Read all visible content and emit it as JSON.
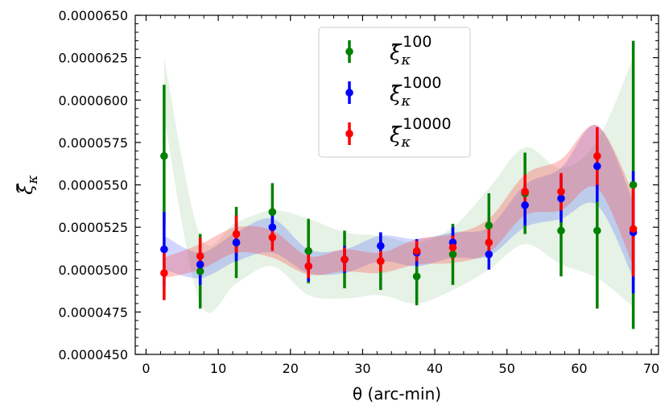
{
  "chart_data": {
    "type": "scatter",
    "title": "",
    "xlabel": "θ (arc-min)",
    "ylabel": "ξ̄_κ",
    "xlim": [
      -1.5,
      71
    ],
    "ylim": [
      4.5e-05,
      6.5e-05
    ],
    "x_ticks": [
      0,
      10,
      20,
      30,
      40,
      50,
      60,
      70
    ],
    "x_tick_labels": [
      "0",
      "10",
      "20",
      "30",
      "40",
      "50",
      "60",
      "70"
    ],
    "y_ticks": [
      4.5e-05,
      4.75e-05,
      5e-05,
      5.25e-05,
      5.5e-05,
      5.75e-05,
      6e-05,
      6.25e-05,
      6.5e-05
    ],
    "y_tick_labels": [
      "0.0000450",
      "0.0000475",
      "0.0000500",
      "0.0000525",
      "0.0000550",
      "0.0000575",
      "0.0000600",
      "0.0000625",
      "0.0000650"
    ],
    "legend": {
      "placement": "top-center",
      "entries": [
        {
          "base": "ξ̄",
          "sub": "κ",
          "sup": "100"
        },
        {
          "base": "ξ̄",
          "sub": "κ",
          "sup": "1000"
        },
        {
          "base": "ξ̄",
          "sub": "κ",
          "sup": "10000"
        }
      ]
    },
    "series": [
      {
        "name": "ξ̄_κ^100",
        "color": "#008000",
        "band_color": "#008000",
        "band_opacity": 0.1,
        "offset": 0,
        "x": [
          2.5,
          7.5,
          12.5,
          17.5,
          22.5,
          27.5,
          32.5,
          37.5,
          42.5,
          47.5,
          52.5,
          57.5,
          62.5,
          67.5
        ],
        "y": [
          5.67e-05,
          4.99e-05,
          5.16e-05,
          5.34e-05,
          5.11e-05,
          5.06e-05,
          5.05e-05,
          4.96e-05,
          5.09e-05,
          5.26e-05,
          5.45e-05,
          5.23e-05,
          5.23e-05,
          5.5e-05
        ],
        "yerr": [
          4.2e-06,
          2.2e-06,
          2.1e-06,
          1.7e-06,
          1.9e-06,
          1.7e-06,
          1.7e-06,
          1.7e-06,
          1.8e-06,
          1.9e-06,
          2.4e-06,
          2.7e-06,
          4.6e-06,
          8.5e-06
        ],
        "band_lower": [
          5.9e-05,
          4.8e-05,
          4.92e-05,
          5.02e-05,
          4.85e-05,
          4.83e-05,
          4.85e-05,
          4.8e-05,
          4.88e-05,
          5e-05,
          5.15e-05,
          5.03e-05,
          4.95e-05,
          4.78e-05
        ],
        "band_upper": [
          6.25e-05,
          5.2e-05,
          5.28e-05,
          5.35e-05,
          5.3e-05,
          5.22e-05,
          5.2e-05,
          5.16e-05,
          5.25e-05,
          5.48e-05,
          5.72e-05,
          5.6e-05,
          5.76e-05,
          6.25e-05
        ]
      },
      {
        "name": "ξ̄_κ^1000",
        "color": "#0000ff",
        "band_color": "#3344ff",
        "band_opacity": 0.22,
        "offset": 0,
        "x": [
          2.5,
          7.5,
          12.5,
          17.5,
          22.5,
          27.5,
          32.5,
          37.5,
          42.5,
          47.5,
          52.5,
          57.5,
          62.5,
          67.5
        ],
        "y": [
          5.12e-05,
          5.03e-05,
          5.16e-05,
          5.25e-05,
          5.02e-05,
          5.06e-05,
          5.14e-05,
          5.1e-05,
          5.16e-05,
          5.09e-05,
          5.38e-05,
          5.42e-05,
          5.61e-05,
          5.22e-05
        ],
        "yerr": [
          2.2e-06,
          1.2e-06,
          1.1e-06,
          9e-07,
          9e-07,
          8e-07,
          8e-07,
          8e-07,
          9e-07,
          9e-07,
          1.2e-06,
          1.4e-06,
          2.1e-06,
          3.6e-06
        ],
        "band_lower": [
          5e-05,
          4.95e-05,
          5.05e-05,
          5.1e-05,
          4.98e-05,
          4.98e-05,
          5.05e-05,
          5.02e-05,
          5.07e-05,
          5.08e-05,
          5.25e-05,
          5.3e-05,
          5.38e-05,
          4.95e-05
        ],
        "band_upper": [
          5.2e-05,
          5.1e-05,
          5.22e-05,
          5.3e-05,
          5.12e-05,
          5.12e-05,
          5.2e-05,
          5.18e-05,
          5.22e-05,
          5.25e-05,
          5.5e-05,
          5.6e-05,
          5.85e-05,
          5.4e-05
        ]
      },
      {
        "name": "ξ̄_κ^10000",
        "color": "#ff0000",
        "band_color": "#ff4444",
        "band_opacity": 0.3,
        "offset": 0,
        "x": [
          2.5,
          7.5,
          12.5,
          17.5,
          22.5,
          27.5,
          32.5,
          37.5,
          42.5,
          47.5,
          52.5,
          57.5,
          62.5,
          67.5
        ],
        "y": [
          4.98e-05,
          5.08e-05,
          5.21e-05,
          5.19e-05,
          5.02e-05,
          5.06e-05,
          5.05e-05,
          5.11e-05,
          5.13e-05,
          5.16e-05,
          5.46e-05,
          5.46e-05,
          5.67e-05,
          5.24e-05
        ],
        "yerr": [
          1.6e-06,
          1.1e-06,
          1.1e-06,
          8e-07,
          7e-07,
          7e-07,
          6e-07,
          6e-07,
          7e-07,
          8e-07,
          1e-06,
          1.1e-06,
          1.7e-06,
          2.8e-06
        ],
        "band_lower": [
          4.95e-05,
          5e-05,
          5.1e-05,
          5.07e-05,
          4.97e-05,
          4.99e-05,
          4.98e-05,
          5.03e-05,
          5.04e-05,
          5.1e-05,
          5.32e-05,
          5.35e-05,
          5.48e-05,
          5.02e-05
        ],
        "band_upper": [
          5.07e-05,
          5.15e-05,
          5.25e-05,
          5.23e-05,
          5.08e-05,
          5.12e-05,
          5.1e-05,
          5.18e-05,
          5.21e-05,
          5.3e-05,
          5.56e-05,
          5.65e-05,
          5.85e-05,
          5.45e-05
        ]
      }
    ]
  }
}
